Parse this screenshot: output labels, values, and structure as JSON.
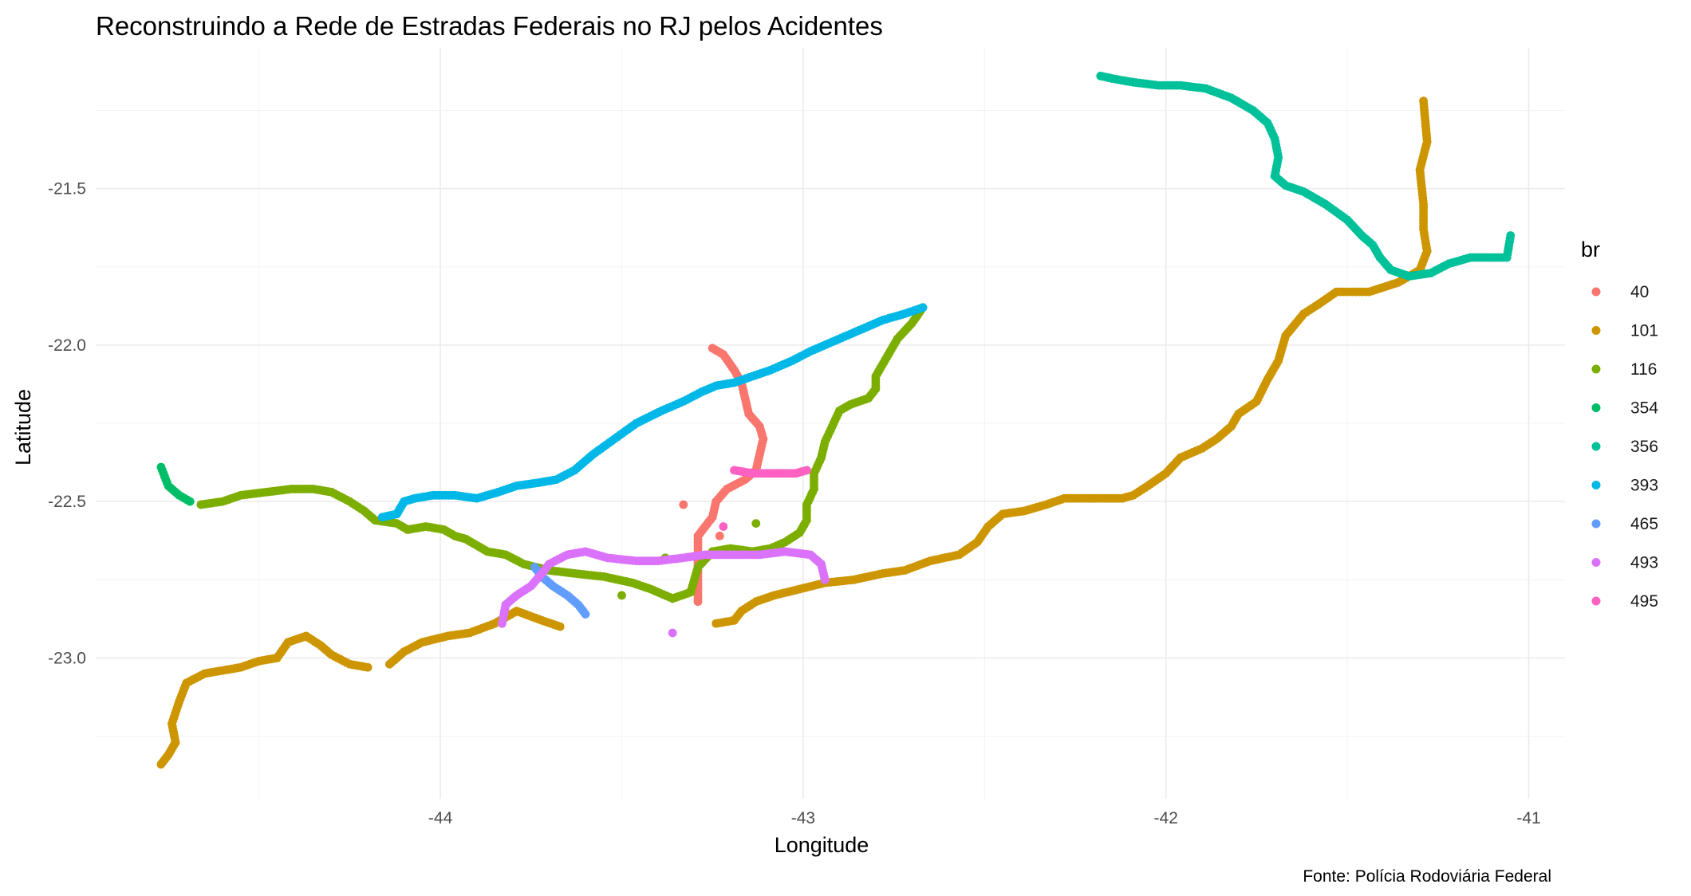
{
  "chart_data": {
    "type": "scatter",
    "title": "Reconstruindo a Rede de Estradas Federais no RJ pelos Acidentes",
    "xlabel": "Longitude",
    "ylabel": "Latitude",
    "caption": "Fonte: Polícia Rodoviária Federal",
    "xlim": [
      -44.95,
      -40.9
    ],
    "ylim": [
      -23.45,
      -21.05
    ],
    "x_ticks": [
      -44,
      -43,
      -42,
      -41
    ],
    "x_tick_labels": [
      "-44",
      "-43",
      "-42",
      "-41"
    ],
    "y_ticks": [
      -21.5,
      -22.0,
      -22.5,
      -23.0
    ],
    "y_tick_labels": [
      "-21.5",
      "-22.0",
      "-22.5",
      "-23.0"
    ],
    "grid": true,
    "legend": {
      "title": "br",
      "position": "right"
    },
    "series": [
      {
        "name": "40",
        "color": "#F8766D",
        "polylines": [
          [
            [
              -43.25,
              -22.01
            ],
            [
              -43.22,
              -22.03
            ],
            [
              -43.19,
              -22.08
            ],
            [
              -43.17,
              -22.12
            ],
            [
              -43.16,
              -22.17
            ],
            [
              -43.15,
              -22.22
            ],
            [
              -43.12,
              -22.26
            ],
            [
              -43.11,
              -22.3
            ],
            [
              -43.12,
              -22.35
            ],
            [
              -43.13,
              -22.4
            ],
            [
              -43.16,
              -22.43
            ],
            [
              -43.21,
              -22.46
            ],
            [
              -43.24,
              -22.5
            ],
            [
              -43.25,
              -22.55
            ],
            [
              -43.27,
              -22.58
            ],
            [
              -43.29,
              -22.61
            ],
            [
              -43.29,
              -22.68
            ],
            [
              -43.29,
              -22.75
            ],
            [
              -43.29,
              -22.82
            ]
          ],
          [
            [
              -43.33,
              -22.51
            ]
          ],
          [
            [
              -43.23,
              -22.61
            ]
          ]
        ]
      },
      {
        "name": "101",
        "color": "#CD9600",
        "polylines": [
          [
            [
              -41.29,
              -21.22
            ],
            [
              -41.28,
              -21.35
            ],
            [
              -41.3,
              -21.44
            ],
            [
              -41.29,
              -21.55
            ],
            [
              -41.29,
              -21.63
            ],
            [
              -41.28,
              -21.7
            ],
            [
              -41.3,
              -21.76
            ],
            [
              -41.36,
              -21.8
            ],
            [
              -41.44,
              -21.83
            ],
            [
              -41.53,
              -21.83
            ],
            [
              -41.58,
              -21.87
            ],
            [
              -41.62,
              -21.9
            ],
            [
              -41.67,
              -21.97
            ],
            [
              -41.69,
              -22.05
            ],
            [
              -41.72,
              -22.11
            ],
            [
              -41.75,
              -22.18
            ],
            [
              -41.8,
              -22.22
            ],
            [
              -41.82,
              -22.26
            ],
            [
              -41.86,
              -22.3
            ],
            [
              -41.9,
              -22.33
            ],
            [
              -41.96,
              -22.36
            ],
            [
              -42.0,
              -22.41
            ],
            [
              -42.05,
              -22.45
            ],
            [
              -42.09,
              -22.48
            ],
            [
              -42.12,
              -22.49
            ],
            [
              -42.16,
              -22.49
            ],
            [
              -42.22,
              -22.49
            ],
            [
              -42.28,
              -22.49
            ],
            [
              -42.33,
              -22.51
            ],
            [
              -42.39,
              -22.53
            ],
            [
              -42.45,
              -22.54
            ],
            [
              -42.49,
              -22.58
            ],
            [
              -42.52,
              -22.63
            ],
            [
              -42.57,
              -22.67
            ],
            [
              -42.65,
              -22.69
            ],
            [
              -42.72,
              -22.72
            ],
            [
              -42.78,
              -22.73
            ],
            [
              -42.86,
              -22.75
            ],
            [
              -42.94,
              -22.76
            ],
            [
              -43.01,
              -22.78
            ],
            [
              -43.08,
              -22.8
            ],
            [
              -43.13,
              -22.82
            ],
            [
              -43.17,
              -22.85
            ],
            [
              -43.19,
              -22.88
            ],
            [
              -43.24,
              -22.89
            ]
          ],
          [
            [
              -43.67,
              -22.9
            ],
            [
              -43.72,
              -22.88
            ],
            [
              -43.79,
              -22.85
            ],
            [
              -43.85,
              -22.89
            ],
            [
              -43.92,
              -22.92
            ],
            [
              -43.98,
              -22.93
            ],
            [
              -44.05,
              -22.95
            ],
            [
              -44.1,
              -22.98
            ],
            [
              -44.14,
              -23.02
            ]
          ],
          [
            [
              -44.2,
              -23.03
            ],
            [
              -44.25,
              -23.02
            ],
            [
              -44.3,
              -22.99
            ],
            [
              -44.33,
              -22.96
            ],
            [
              -44.37,
              -22.93
            ],
            [
              -44.42,
              -22.95
            ],
            [
              -44.45,
              -23.0
            ],
            [
              -44.5,
              -23.01
            ],
            [
              -44.55,
              -23.03
            ],
            [
              -44.6,
              -23.04
            ],
            [
              -44.65,
              -23.05
            ],
            [
              -44.7,
              -23.08
            ],
            [
              -44.72,
              -23.14
            ],
            [
              -44.74,
              -23.21
            ],
            [
              -44.73,
              -23.27
            ],
            [
              -44.75,
              -23.31
            ],
            [
              -44.77,
              -23.34
            ]
          ]
        ]
      },
      {
        "name": "116",
        "color": "#7CAE00",
        "polylines": [
          [
            [
              -42.67,
              -21.88
            ],
            [
              -42.7,
              -21.93
            ],
            [
              -42.74,
              -21.98
            ],
            [
              -42.77,
              -22.04
            ],
            [
              -42.8,
              -22.1
            ],
            [
              -42.8,
              -22.14
            ],
            [
              -42.82,
              -22.17
            ],
            [
              -42.87,
              -22.19
            ],
            [
              -42.9,
              -22.21
            ],
            [
              -42.92,
              -22.26
            ],
            [
              -42.94,
              -22.31
            ],
            [
              -42.95,
              -22.36
            ],
            [
              -42.97,
              -22.41
            ],
            [
              -42.97,
              -22.46
            ],
            [
              -42.99,
              -22.51
            ],
            [
              -42.99,
              -22.56
            ],
            [
              -43.01,
              -22.6
            ],
            [
              -43.05,
              -22.63
            ],
            [
              -43.09,
              -22.65
            ],
            [
              -43.14,
              -22.66
            ],
            [
              -43.2,
              -22.65
            ],
            [
              -43.25,
              -22.66
            ],
            [
              -43.29,
              -22.71
            ],
            [
              -43.31,
              -22.79
            ],
            [
              -43.36,
              -22.81
            ],
            [
              -43.42,
              -22.78
            ],
            [
              -43.47,
              -22.76
            ],
            [
              -43.55,
              -22.74
            ],
            [
              -43.63,
              -22.73
            ],
            [
              -43.7,
              -22.72
            ],
            [
              -43.77,
              -22.7
            ],
            [
              -43.82,
              -22.67
            ],
            [
              -43.87,
              -22.66
            ],
            [
              -43.9,
              -22.64
            ],
            [
              -43.93,
              -22.62
            ],
            [
              -43.96,
              -22.61
            ],
            [
              -43.99,
              -22.59
            ],
            [
              -44.04,
              -22.58
            ],
            [
              -44.09,
              -22.59
            ],
            [
              -44.12,
              -22.57
            ],
            [
              -44.18,
              -22.56
            ],
            [
              -44.21,
              -22.53
            ],
            [
              -44.25,
              -22.5
            ],
            [
              -44.3,
              -22.47
            ],
            [
              -44.35,
              -22.46
            ],
            [
              -44.41,
              -22.46
            ],
            [
              -44.48,
              -22.47
            ],
            [
              -44.55,
              -22.48
            ],
            [
              -44.6,
              -22.5
            ],
            [
              -44.66,
              -22.51
            ]
          ],
          [
            [
              -43.13,
              -22.57
            ]
          ],
          [
            [
              -43.5,
              -22.8
            ]
          ],
          [
            [
              -43.38,
              -22.68
            ]
          ]
        ]
      },
      {
        "name": "354",
        "color": "#00BE67",
        "polylines": [
          [
            [
              -44.77,
              -22.39
            ],
            [
              -44.76,
              -22.42
            ],
            [
              -44.75,
              -22.45
            ],
            [
              -44.72,
              -22.48
            ],
            [
              -44.69,
              -22.5
            ]
          ]
        ]
      },
      {
        "name": "356",
        "color": "#00C19A",
        "polylines": [
          [
            [
              -42.18,
              -21.14
            ],
            [
              -42.14,
              -21.15
            ],
            [
              -42.09,
              -21.16
            ],
            [
              -42.02,
              -21.17
            ],
            [
              -41.96,
              -21.17
            ],
            [
              -41.89,
              -21.18
            ],
            [
              -41.82,
              -21.21
            ],
            [
              -41.76,
              -21.25
            ],
            [
              -41.72,
              -21.29
            ],
            [
              -41.7,
              -21.34
            ],
            [
              -41.69,
              -21.4
            ],
            [
              -41.7,
              -21.46
            ],
            [
              -41.67,
              -21.49
            ],
            [
              -41.62,
              -21.51
            ],
            [
              -41.56,
              -21.55
            ],
            [
              -41.5,
              -21.6
            ],
            [
              -41.46,
              -21.65
            ],
            [
              -41.43,
              -21.68
            ],
            [
              -41.41,
              -21.72
            ],
            [
              -41.38,
              -21.76
            ],
            [
              -41.33,
              -21.78
            ],
            [
              -41.27,
              -21.77
            ],
            [
              -41.22,
              -21.74
            ],
            [
              -41.16,
              -21.72
            ],
            [
              -41.11,
              -21.72
            ],
            [
              -41.06,
              -21.72
            ],
            [
              -41.05,
              -21.65
            ]
          ]
        ]
      },
      {
        "name": "393",
        "color": "#00B8E7",
        "polylines": [
          [
            [
              -42.67,
              -21.88
            ],
            [
              -42.72,
              -21.9
            ],
            [
              -42.78,
              -21.92
            ],
            [
              -42.86,
              -21.96
            ],
            [
              -42.92,
              -21.99
            ],
            [
              -42.98,
              -22.02
            ],
            [
              -43.03,
              -22.05
            ],
            [
              -43.09,
              -22.08
            ],
            [
              -43.14,
              -22.1
            ],
            [
              -43.19,
              -22.12
            ],
            [
              -43.24,
              -22.13
            ],
            [
              -43.28,
              -22.15
            ],
            [
              -43.33,
              -22.18
            ],
            [
              -43.39,
              -22.21
            ],
            [
              -43.46,
              -22.25
            ],
            [
              -43.52,
              -22.3
            ],
            [
              -43.58,
              -22.35
            ],
            [
              -43.63,
              -22.4
            ],
            [
              -43.68,
              -22.43
            ],
            [
              -43.73,
              -22.44
            ],
            [
              -43.79,
              -22.45
            ],
            [
              -43.84,
              -22.47
            ],
            [
              -43.9,
              -22.49
            ],
            [
              -43.96,
              -22.48
            ],
            [
              -44.02,
              -22.48
            ],
            [
              -44.07,
              -22.49
            ],
            [
              -44.1,
              -22.5
            ],
            [
              -44.12,
              -22.54
            ],
            [
              -44.16,
              -22.55
            ]
          ]
        ]
      },
      {
        "name": "465",
        "color": "#619CFF",
        "polylines": [
          [
            [
              -43.6,
              -22.86
            ],
            [
              -43.62,
              -22.83
            ],
            [
              -43.65,
              -22.8
            ],
            [
              -43.69,
              -22.77
            ],
            [
              -43.72,
              -22.74
            ],
            [
              -43.74,
              -22.71
            ]
          ]
        ]
      },
      {
        "name": "493",
        "color": "#DB72FB",
        "polylines": [
          [
            [
              -43.83,
              -22.89
            ],
            [
              -43.82,
              -22.83
            ],
            [
              -43.79,
              -22.8
            ],
            [
              -43.75,
              -22.77
            ],
            [
              -43.72,
              -22.73
            ],
            [
              -43.7,
              -22.7
            ],
            [
              -43.65,
              -22.67
            ],
            [
              -43.6,
              -22.66
            ],
            [
              -43.54,
              -22.68
            ],
            [
              -43.46,
              -22.69
            ],
            [
              -43.4,
              -22.69
            ],
            [
              -43.33,
              -22.68
            ],
            [
              -43.27,
              -22.67
            ],
            [
              -43.2,
              -22.67
            ],
            [
              -43.12,
              -22.67
            ],
            [
              -43.05,
              -22.66
            ],
            [
              -42.98,
              -22.67
            ],
            [
              -42.95,
              -22.7
            ],
            [
              -42.94,
              -22.75
            ]
          ],
          [
            [
              -43.36,
              -22.92
            ]
          ]
        ]
      },
      {
        "name": "495",
        "color": "#FF61C3",
        "polylines": [
          [
            [
              -43.19,
              -22.4
            ],
            [
              -43.14,
              -22.41
            ],
            [
              -43.07,
              -22.41
            ],
            [
              -43.02,
              -22.41
            ],
            [
              -42.99,
              -22.4
            ]
          ],
          [
            [
              -43.22,
              -22.58
            ]
          ]
        ]
      }
    ]
  }
}
